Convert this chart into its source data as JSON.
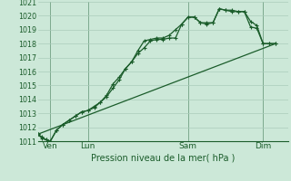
{
  "background_color": "#cce8d8",
  "plot_bg_color": "#cce8d8",
  "grid_color": "#aaccbb",
  "line_color": "#1a5c2a",
  "title": "Pression niveau de la mer( hPa )",
  "ylim": [
    1011,
    1021
  ],
  "xlim": [
    0,
    240
  ],
  "ytick_labels": [
    1011,
    1012,
    1013,
    1014,
    1015,
    1016,
    1017,
    1018,
    1019,
    1020,
    1021
  ],
  "day_labels": [
    "Ven",
    "Lun",
    "Sam",
    "Dim"
  ],
  "day_positions": [
    12,
    48,
    144,
    216
  ],
  "series1_x": [
    0,
    4,
    8,
    12,
    18,
    24,
    30,
    36,
    42,
    48,
    54,
    60,
    66,
    72,
    78,
    84,
    90,
    96,
    102,
    108,
    114,
    120,
    126,
    132,
    138,
    144,
    150,
    156,
    162,
    168,
    174,
    180,
    186,
    192,
    198,
    204,
    210,
    216,
    222,
    228
  ],
  "series1_y": [
    1011.5,
    1011.3,
    1011.1,
    1011.0,
    1011.8,
    1012.2,
    1012.5,
    1012.8,
    1013.1,
    1013.2,
    1013.5,
    1013.8,
    1014.3,
    1015.1,
    1015.6,
    1016.2,
    1016.7,
    1017.3,
    1017.7,
    1018.2,
    1018.3,
    1018.3,
    1018.4,
    1018.4,
    1019.4,
    1019.9,
    1019.9,
    1019.5,
    1019.5,
    1019.5,
    1020.5,
    1020.4,
    1020.4,
    1020.3,
    1020.3,
    1019.2,
    1019.1,
    1018.0,
    1018.0,
    1018.0
  ],
  "series2_x": [
    0,
    4,
    8,
    12,
    18,
    24,
    30,
    36,
    42,
    48,
    54,
    60,
    66,
    72,
    78,
    84,
    90,
    96,
    102,
    108,
    114,
    120,
    126,
    132,
    138,
    144,
    150,
    156,
    162,
    168,
    174,
    180,
    186,
    192,
    198,
    204,
    210,
    216,
    222,
    228
  ],
  "series2_y": [
    1011.5,
    1011.2,
    1011.1,
    1011.0,
    1011.8,
    1012.2,
    1012.5,
    1012.8,
    1013.1,
    1013.2,
    1013.4,
    1013.8,
    1014.2,
    1014.8,
    1015.4,
    1016.2,
    1016.7,
    1017.5,
    1018.2,
    1018.3,
    1018.4,
    1018.4,
    1018.6,
    1019.0,
    1019.4,
    1019.9,
    1019.9,
    1019.5,
    1019.4,
    1019.5,
    1020.5,
    1020.4,
    1020.3,
    1020.3,
    1020.3,
    1019.6,
    1019.3,
    1018.0,
    1018.0,
    1018.0
  ],
  "series3_x": [
    0,
    228
  ],
  "series3_y": [
    1011.5,
    1018.0
  ]
}
